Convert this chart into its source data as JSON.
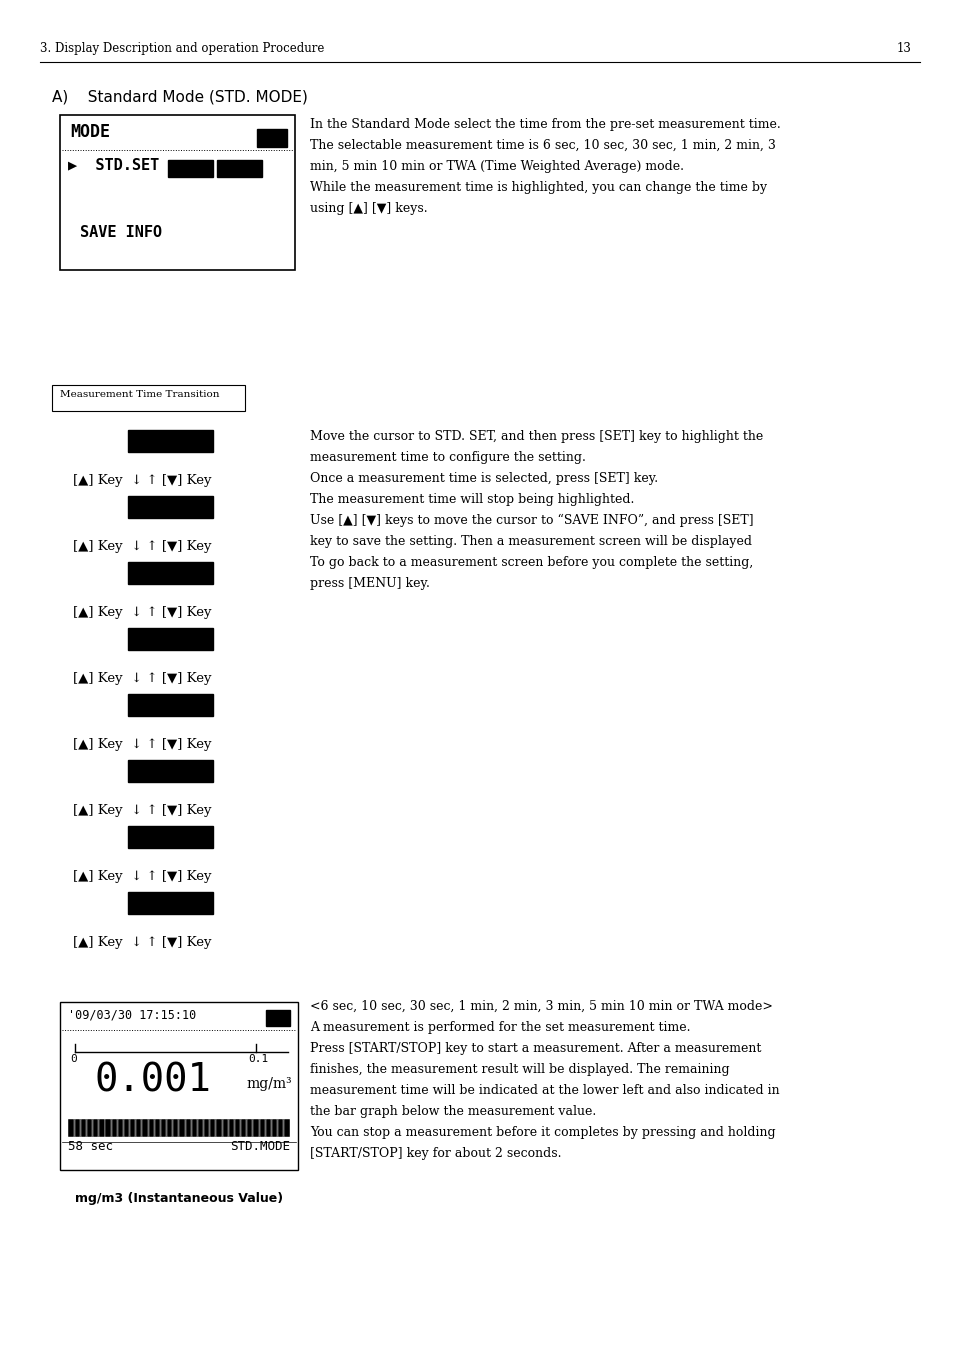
{
  "page_width": 9.54,
  "page_height": 13.51,
  "bg_color": "#ffffff",
  "header_text": "3. Display Description and operation Procedure",
  "header_page": "13",
  "section_title": "A)    Standard Mode (STD. MODE)",
  "mode_box_lines": [
    "MODE",
    "▶  STD.SET",
    "SAVE INFO"
  ],
  "right_text_1": [
    "In the Standard Mode select the time from the pre-set measurement time.",
    "The selectable measurement time is 6 sec, 10 sec, 30 sec, 1 min, 2 min, 3",
    "min, 5 min 10 min or TWA (Time Weighted Average) mode.",
    "While the measurement time is highlighted, you can change the time by",
    "using [▲] [▼] keys."
  ],
  "mtt_label": "Measurement Time Transition",
  "key_text": "[▲] Key  ↓ ↑ [▼] Key",
  "right_text_2": [
    "Move the cursor to STD. SET, and then press [SET] key to highlight the",
    "measurement time to configure the setting.",
    "Once a measurement time is selected, press [SET] key.",
    "The measurement time will stop being highlighted.",
    "Use [▲] [▼] keys to move the cursor to “SAVE INFO”, and press [SET]",
    "key to save the setting. Then a measurement screen will be displayed",
    "To go back to a measurement screen before you complete the setting,",
    "press [MENU] key."
  ],
  "lcd_line1": "'09/03/30 17:15:10",
  "lcd_value": "0.001",
  "lcd_unit": "mg/m³",
  "lcd_bottom_left": "58 sec",
  "lcd_bottom_right": "STD.MODE",
  "lcd_caption": "mg/m3 (Instantaneous Value)",
  "right_text_3": [
    "<6 sec, 10 sec, 30 sec, 1 min, 2 min, 3 min, 5 min 10 min or TWA mode>",
    "A measurement is performed for the set measurement time.",
    "Press [START/STOP] key to start a measurement. After a measurement",
    "finishes, the measurement result will be displayed. The remaining",
    "measurement time will be indicated at the lower left and also indicated in",
    "the bar graph below the measurement value.",
    "You can stop a measurement before it completes by pressing and holding",
    "[START/STOP] key for about 2 seconds."
  ]
}
